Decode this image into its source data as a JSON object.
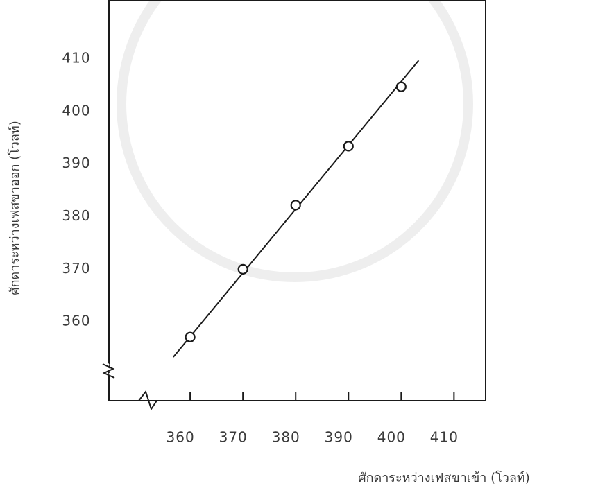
{
  "chart_data": {
    "type": "scatter",
    "x_label": "ศักดาระหว่างเฟสขาเข้า    (โวลท์)",
    "y_label": "ศักดาระหว่างเฟสขาออก   (โวลท์)",
    "x": [
      360,
      370,
      380,
      390,
      400
    ],
    "values": [
      357.1,
      370,
      382.2,
      393.4,
      404.7
    ],
    "fit_line": {
      "x": [
        356.8,
        403.3
      ],
      "y": [
        353.3,
        409.7
      ]
    },
    "color": "#1a1a1a",
    "xlim": [
      344.6,
      416
    ],
    "ylim": [
      345,
      421.2
    ],
    "xticks": [
      360,
      370,
      380,
      390,
      400,
      410
    ],
    "yticks": [
      360,
      370,
      380,
      390,
      400,
      410
    ]
  }
}
